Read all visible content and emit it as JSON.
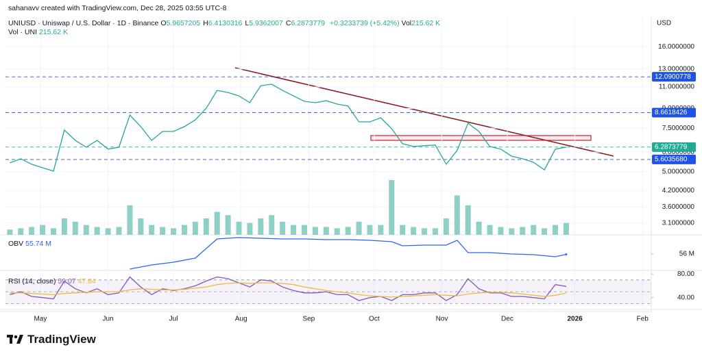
{
  "header": {
    "watermark": "sahanavv created with TradingView.com, Dec 28, 2025 03:55 UTC-8",
    "symbol": "UNIUSD · Uniswap / U.S. Dollar · 1D · Binance",
    "ohlc": [
      {
        "key": "O",
        "value": "5.9657205"
      },
      {
        "key": "H",
        "value": "6.4130316"
      },
      {
        "key": "L",
        "value": "5.9362007"
      },
      {
        "key": "C",
        "value": "6.2873779"
      }
    ],
    "change": "+0.3233739 (+5.42%)",
    "vol_key": "Vol",
    "vol_value": "215.62 K",
    "vol_row": "Vol · UNI",
    "currency": "USD"
  },
  "footer": {
    "logo": "TradingView"
  },
  "chart_data": [
    {
      "type": "line",
      "scale": "log",
      "grid": true,
      "x": [
        -14,
        -9,
        -4,
        1,
        6,
        11,
        16,
        21,
        26,
        31,
        36,
        41,
        46,
        51,
        56,
        61,
        66,
        71,
        76,
        81,
        86,
        91,
        96,
        101,
        106,
        111,
        116,
        121,
        126,
        131,
        136,
        141,
        146,
        151,
        156,
        161,
        166,
        171,
        176,
        181,
        186,
        191,
        196,
        201,
        206,
        211,
        216,
        221,
        226,
        231,
        236,
        241
      ],
      "xlim": [
        -16,
        280
      ],
      "xticks": [
        {
          "value": 0,
          "label": "May"
        },
        {
          "value": 31,
          "label": "Jun"
        },
        {
          "value": 61,
          "label": "Jul"
        },
        {
          "value": 92,
          "label": "Aug"
        },
        {
          "value": 123,
          "label": "Sep"
        },
        {
          "value": 153,
          "label": "Oct"
        },
        {
          "value": 184,
          "label": "Nov"
        },
        {
          "value": 214,
          "label": "Dec"
        },
        {
          "value": 245,
          "label": "2026"
        },
        {
          "value": 276,
          "label": "Feb"
        }
      ],
      "ylim": [
        2.78,
        20.4
      ],
      "yticks": [
        {
          "value": 16,
          "label": "16.0000000"
        },
        {
          "value": 13,
          "label": "13.0000000"
        },
        {
          "value": 11,
          "label": "11.0000000"
        },
        {
          "value": 9,
          "label": "9.0000000"
        },
        {
          "value": 7.5,
          "label": "7.5000000"
        },
        {
          "value": 6,
          "label": "6.0000000"
        },
        {
          "value": 5,
          "label": "5.0000000"
        },
        {
          "value": 4.2,
          "label": "4.2000000"
        },
        {
          "value": 3.6,
          "label": "3.6000000"
        },
        {
          "value": 3.1,
          "label": "3.1000000"
        }
      ],
      "series": [
        {
          "color": "#26a69a",
          "values": [
            5.43,
            5.64,
            5.36,
            5.19,
            5.03,
            7.37,
            6.69,
            6.28,
            6.69,
            6.17,
            6.28,
            8.47,
            7.61,
            6.69,
            7.27,
            7.27,
            7.61,
            8.1,
            9.02,
            10.65,
            10.45,
            10.12,
            9.5,
            11.13,
            11.28,
            10.65,
            10.12,
            9.62,
            9.5,
            9.68,
            9.38,
            9.21,
            7.95,
            7.95,
            8.26,
            7.46,
            6.49,
            6.32,
            6.37,
            6.41,
            5.36,
            6.09,
            7.85,
            7.27,
            6.32,
            6.17,
            5.78,
            5.64,
            5.46,
            5.09,
            6.17,
            6.2873779
          ]
        },
        {
          "type": "bar",
          "axis": "y2",
          "color": "#8fd0c6",
          "values": [
            96,
            120,
            144,
            180,
            120,
            300,
            240,
            180,
            144,
            120,
            144,
            540,
            300,
            180,
            144,
            120,
            180,
            240,
            300,
            420,
            360,
            240,
            216,
            300,
            360,
            240,
            180,
            180,
            144,
            144,
            120,
            144,
            240,
            180,
            180,
            1000,
            180,
            144,
            120,
            120,
            300,
            720,
            540,
            240,
            180,
            144,
            120,
            144,
            180,
            120,
            180,
            215.62
          ]
        }
      ],
      "price_lines": [
        {
          "value": 12.0900778,
          "label": "12.0900778",
          "color": "#1e53e5"
        },
        {
          "value": 8.6618426,
          "label": "8.6618426",
          "color": "#1e53e5"
        },
        {
          "value": 5.603568,
          "label": "5.6035680",
          "color": "#1e53e5"
        },
        {
          "value": 6.2873779,
          "label": "6.2873779",
          "color": "#22ab94"
        }
      ]
    },
    {
      "type": "line",
      "name": "OBV",
      "x": [
        41,
        51,
        61,
        71,
        81,
        91,
        101,
        111,
        121,
        131,
        141,
        151,
        161,
        166,
        176,
        186,
        191,
        196,
        206,
        216,
        226,
        236,
        241
      ],
      "xlim": [
        -16,
        280
      ],
      "ylim": [
        44,
        70
      ],
      "yticks": [
        {
          "value": 56,
          "label": "56 M"
        }
      ],
      "series": [
        {
          "color": "#2962ff",
          "legend_value": "55.74 M",
          "values": [
            45,
            48,
            50,
            53,
            67,
            68,
            67.5,
            67,
            67,
            66.5,
            66.5,
            66,
            65,
            62,
            62.5,
            62.5,
            66,
            57,
            57,
            56,
            55.5,
            54,
            55.74
          ]
        }
      ]
    },
    {
      "type": "line",
      "name": "RSI (14, close)",
      "x": [
        -14,
        -9,
        -4,
        1,
        6,
        11,
        16,
        21,
        26,
        31,
        36,
        41,
        46,
        51,
        56,
        61,
        66,
        71,
        76,
        81,
        86,
        91,
        96,
        101,
        106,
        111,
        116,
        121,
        126,
        131,
        136,
        141,
        146,
        151,
        156,
        161,
        166,
        171,
        176,
        181,
        186,
        191,
        196,
        201,
        206,
        211,
        216,
        221,
        226,
        231,
        236,
        241
      ],
      "xlim": [
        -16,
        280
      ],
      "ylim": [
        20,
        86
      ],
      "yticks": [
        {
          "value": 80,
          "label": "80.00"
        },
        {
          "value": 40,
          "label": "40.00"
        }
      ],
      "hlines": [
        70,
        50,
        30
      ],
      "series": [
        {
          "color": "#7e57c2",
          "legend_value": "59.07",
          "values": [
            45,
            50,
            42,
            40,
            38,
            68,
            55,
            48,
            55,
            45,
            48,
            75,
            58,
            45,
            55,
            52,
            55,
            60,
            68,
            75,
            72,
            65,
            58,
            70,
            68,
            58,
            52,
            48,
            48,
            50,
            45,
            45,
            35,
            40,
            42,
            35,
            45,
            45,
            48,
            48,
            35,
            45,
            72,
            55,
            48,
            48,
            42,
            42,
            40,
            38,
            62,
            59.07
          ]
        },
        {
          "color": "#f0b93a",
          "legend_value": "47.84",
          "values": [
            48,
            48,
            47,
            46,
            45,
            47,
            48,
            49,
            50,
            50,
            50,
            53,
            55,
            54,
            53,
            53,
            54,
            56,
            58,
            62,
            64,
            65,
            64,
            65,
            65,
            64,
            62,
            58,
            55,
            52,
            50,
            48,
            45,
            43,
            42,
            41,
            42,
            43,
            44,
            45,
            44,
            43,
            46,
            48,
            49,
            49,
            48,
            46,
            44,
            42,
            44,
            47.84
          ]
        }
      ]
    }
  ]
}
